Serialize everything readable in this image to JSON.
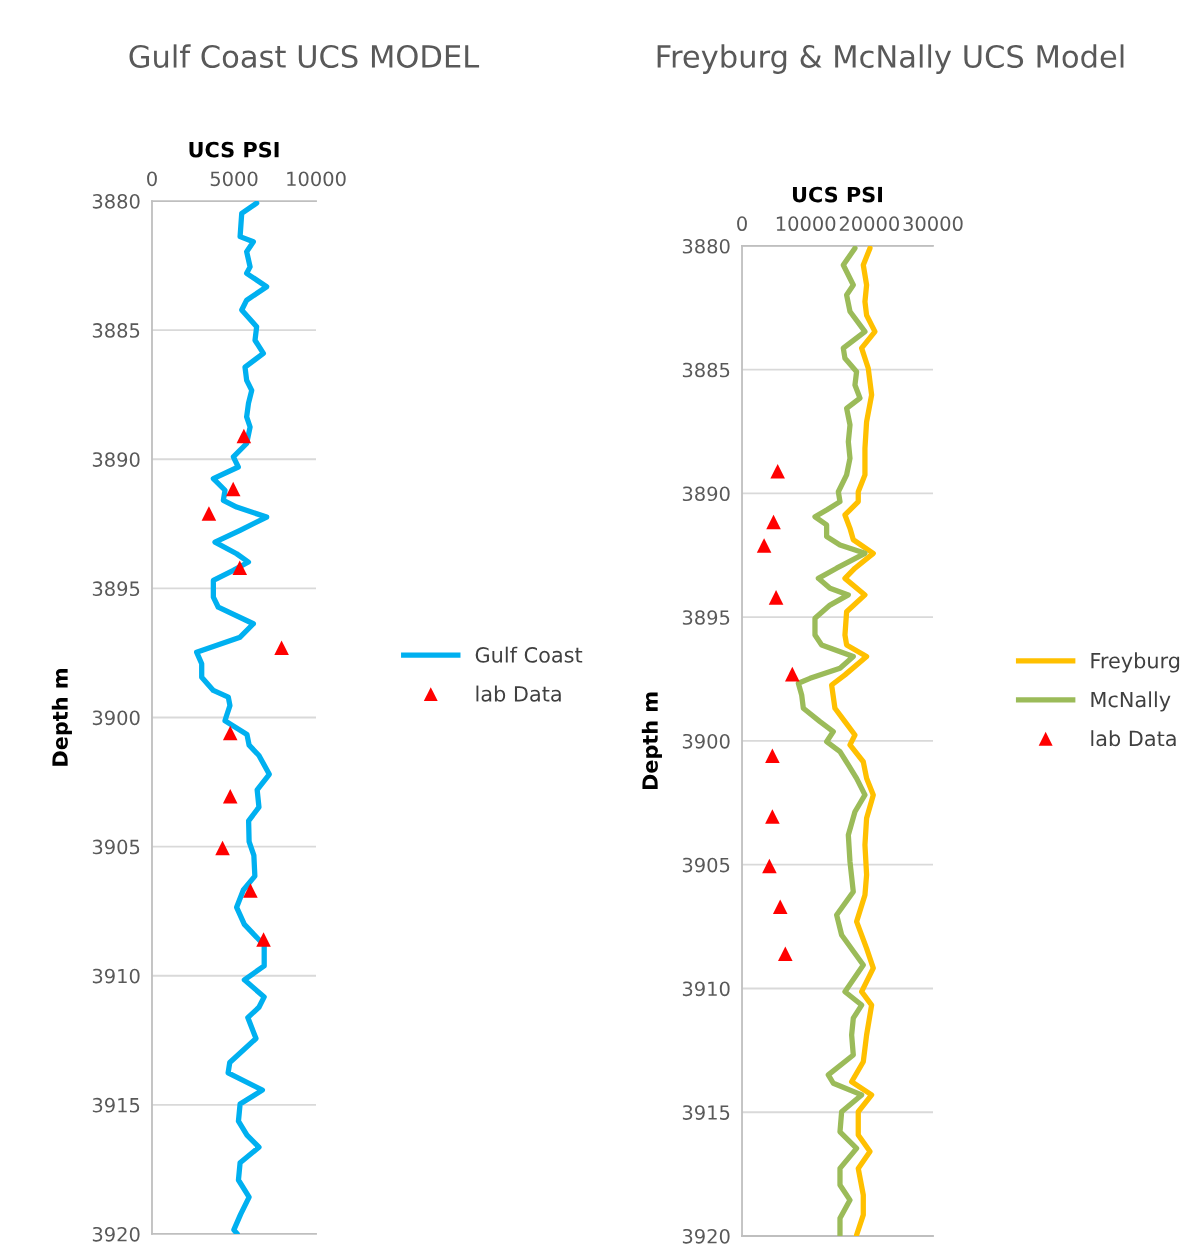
{
  "chart_data": [
    {
      "type": "line",
      "title": "Gulf Coast UCS MODEL",
      "xlabel": "UCS PSI",
      "ylabel": "Depth m",
      "xlim": [
        0,
        10000
      ],
      "xticks": [
        0,
        5000,
        10000
      ],
      "ylim": [
        3920,
        3880
      ],
      "yticks": [
        3880,
        3885,
        3890,
        3895,
        3900,
        3905,
        3910,
        3915,
        3920
      ],
      "grid": "y",
      "legend": "right",
      "series": [
        {
          "name": "Gulf Coast",
          "color": "#00b0f0",
          "x": [
            6380,
            5470,
            5370,
            6180,
            5770,
            5980,
            5770,
            6990,
            5770,
            5470,
            6380,
            6280,
            6790,
            5670,
            5770,
            6080,
            5880,
            5770,
            5980,
            5770,
            4960,
            5260,
            3740,
            4450,
            4350,
            5160,
            6990,
            5370,
            3840,
            5160,
            5880,
            4960,
            3740,
            3740,
            4040,
            6180,
            5370,
            2720,
            3030,
            3030,
            3740,
            4650,
            4750,
            4520,
            4450,
            5790,
            5920,
            6520,
            7150,
            6410,
            6520,
            5890,
            5920,
            6210,
            6270,
            5570,
            5160,
            5630,
            6840,
            6840,
            5630,
            6840,
            6520,
            5840,
            6340,
            4740,
            4640,
            6730,
            5370,
            5270,
            5790,
            6520,
            5370,
            5270,
            5920,
            5400,
            4990,
            5200
          ],
          "values": [
            3880.08,
            3880.48,
            3881.38,
            3881.58,
            3881.96,
            3882.55,
            3882.8,
            3883.32,
            3883.84,
            3884.22,
            3884.87,
            3885.39,
            3885.9,
            3886.43,
            3886.94,
            3887.33,
            3887.84,
            3888.36,
            3888.75,
            3889.39,
            3889.91,
            3890.3,
            3890.75,
            3891.2,
            3891.59,
            3891.85,
            3892.24,
            3892.75,
            3893.21,
            3893.66,
            3893.98,
            3894.3,
            3894.69,
            3895.34,
            3895.73,
            3896.37,
            3896.89,
            3897.47,
            3897.92,
            3898.44,
            3898.95,
            3899.21,
            3899.54,
            3899.98,
            3900.13,
            3900.66,
            3901.07,
            3901.47,
            3902.2,
            3902.8,
            3903.47,
            3904.0,
            3904.81,
            3905.34,
            3906.14,
            3906.68,
            3907.35,
            3908.01,
            3908.82,
            3909.62,
            3910.16,
            3910.82,
            3911.22,
            3911.62,
            3912.43,
            3913.36,
            3913.76,
            3914.43,
            3914.97,
            3915.63,
            3916.17,
            3916.64,
            3917.24,
            3917.91,
            3918.57,
            3919.24,
            3919.84,
            3920.0
          ]
        },
        {
          "name": "lab Data",
          "type": "scatter",
          "color": "#ff0000",
          "marker": "triangle",
          "x": [
            5600,
            4950,
            3470,
            5350,
            7900,
            4770,
            4770,
            4300,
            6000,
            6800
          ],
          "values": [
            3889.1,
            3891.15,
            3892.1,
            3894.2,
            3897.3,
            3900.6,
            3903.05,
            3905.05,
            3906.7,
            3908.6
          ]
        }
      ]
    },
    {
      "type": "line",
      "title": "Freyburg & McNally UCS Model",
      "xlabel": "UCS PSI",
      "ylabel": "Depth m",
      "xlim": [
        0,
        30000
      ],
      "xticks": [
        0,
        10000,
        20000,
        30000
      ],
      "ylim": [
        3920,
        3880
      ],
      "yticks": [
        3880,
        3885,
        3890,
        3895,
        3900,
        3905,
        3910,
        3915,
        3920
      ],
      "grid": "y",
      "legend": "right",
      "series": [
        {
          "name": "Freyburg",
          "color": "#ffc000",
          "x": [
            20100,
            19050,
            19570,
            19310,
            19570,
            20880,
            18790,
            19830,
            20360,
            19570,
            19310,
            19310,
            18260,
            18260,
            16170,
            16960,
            17480,
            20620,
            17740,
            16170,
            19310,
            16430,
            16170,
            16430,
            19570,
            16170,
            14080,
            14600,
            16170,
            17740,
            16960,
            19050,
            19570,
            20620,
            19570,
            19310,
            19570,
            19310,
            18000,
            19570,
            20620,
            18790,
            20360,
            19570,
            19050,
            17220,
            20360,
            18260,
            18260,
            20100,
            18260,
            19050,
            19050,
            18000
          ],
          "values": [
            3880.09,
            3880.77,
            3881.58,
            3882.25,
            3882.8,
            3883.46,
            3884.13,
            3884.94,
            3886.02,
            3887.1,
            3888.18,
            3889.25,
            3889.93,
            3890.33,
            3890.87,
            3891.41,
            3891.87,
            3892.42,
            3893.02,
            3893.43,
            3894.1,
            3894.78,
            3895.72,
            3896.12,
            3896.59,
            3897.33,
            3897.74,
            3898.68,
            3899.22,
            3899.76,
            3900.16,
            3900.84,
            3901.51,
            3902.18,
            3903.12,
            3904.2,
            3905.41,
            3906.22,
            3907.3,
            3908.38,
            3909.18,
            3910.13,
            3910.67,
            3911.88,
            3912.96,
            3913.77,
            3914.3,
            3914.98,
            3915.92,
            3916.59,
            3917.27,
            3918.34,
            3919.15,
            3919.96
          ]
        },
        {
          "name": "McNally",
          "color": "#9bbb59",
          "x": [
            17740,
            15910,
            17480,
            16430,
            16960,
            19310,
            15910,
            16170,
            18000,
            17740,
            18530,
            16430,
            16960,
            16700,
            16960,
            16430,
            15130,
            15390,
            13290,
            11460,
            13290,
            13290,
            15390,
            19310,
            14860,
            11990,
            13820,
            16700,
            13820,
            11460,
            11460,
            12510,
            17480,
            15390,
            10680,
            8850,
            9370,
            9630,
            12250,
            14340,
            13290,
            15390,
            16700,
            18000,
            19310,
            17740,
            16700,
            16960,
            17480,
            14860,
            15650,
            19050,
            16170,
            18790,
            17480,
            17220,
            17480,
            13550,
            14340,
            18790,
            15650,
            15390,
            18000,
            15390,
            15390,
            16960,
            15390,
            15390
          ],
          "values": [
            3880.09,
            3880.77,
            3881.58,
            3881.98,
            3882.65,
            3883.46,
            3884.13,
            3884.54,
            3885.08,
            3885.62,
            3886.15,
            3886.56,
            3887.23,
            3887.91,
            3888.58,
            3889.25,
            3889.93,
            3890.33,
            3890.67,
            3890.94,
            3891.27,
            3891.74,
            3892.08,
            3892.42,
            3893.02,
            3893.43,
            3893.83,
            3894.1,
            3894.51,
            3895.04,
            3895.72,
            3896.12,
            3896.59,
            3897.06,
            3897.47,
            3897.67,
            3898.14,
            3898.68,
            3899.22,
            3899.62,
            3900.03,
            3900.43,
            3900.97,
            3901.51,
            3902.18,
            3902.86,
            3903.8,
            3904.88,
            3906.09,
            3907.03,
            3907.84,
            3909.05,
            3910.13,
            3910.67,
            3911.2,
            3911.88,
            3912.69,
            3913.49,
            3913.83,
            3914.3,
            3914.98,
            3915.79,
            3916.46,
            3917.27,
            3917.94,
            3918.55,
            3919.28,
            3919.96
          ]
        },
        {
          "name": "lab Data",
          "type": "scatter",
          "color": "#ff0000",
          "marker": "triangle",
          "x": [
            5600,
            4950,
            3470,
            5350,
            7900,
            4770,
            4770,
            4300,
            6000,
            6800
          ],
          "values": [
            3889.1,
            3891.15,
            3892.1,
            3894.2,
            3897.3,
            3900.6,
            3903.05,
            3905.05,
            3906.7,
            3908.6
          ]
        }
      ]
    }
  ]
}
